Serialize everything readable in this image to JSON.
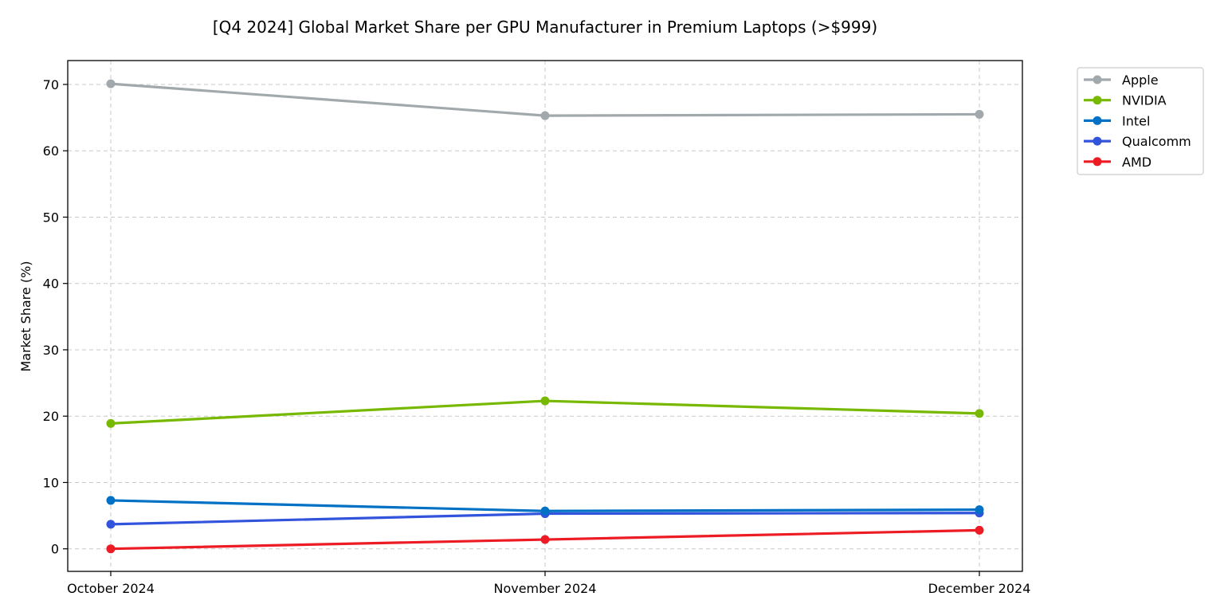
{
  "chart_data": {
    "type": "line",
    "title": "[Q4 2024] Global Market Share per GPU Manufacturer in Premium Laptops (>$999)",
    "xlabel": "",
    "ylabel": "Market Share (%)",
    "categories": [
      "October 2024",
      "November 2024",
      "December 2024"
    ],
    "ylim": [
      -3.4,
      73.6
    ],
    "yticks": [
      0,
      10,
      20,
      30,
      40,
      50,
      60,
      70
    ],
    "grid": true,
    "legend_position": "outside-top-right",
    "series": [
      {
        "name": "Apple",
        "color": "#a2a9ad",
        "values": [
          70.1,
          65.3,
          65.5
        ]
      },
      {
        "name": "NVIDIA",
        "color": "#76b900",
        "values": [
          18.9,
          22.3,
          20.4
        ]
      },
      {
        "name": "Intel",
        "color": "#0071c5",
        "values": [
          7.3,
          5.7,
          5.9
        ]
      },
      {
        "name": "Qualcomm",
        "color": "#3253dc",
        "values": [
          3.7,
          5.3,
          5.4
        ]
      },
      {
        "name": "AMD",
        "color": "#ed1c24",
        "values": [
          0.0,
          1.4,
          2.8
        ]
      }
    ]
  }
}
